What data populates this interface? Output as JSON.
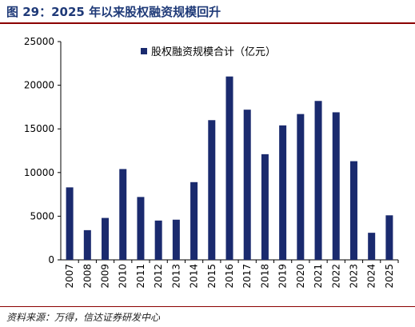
{
  "header": {
    "title": "图 29：2025 年以来股权融资规模回升"
  },
  "source": "资料来源：万得，信达证券研发中心",
  "colors": {
    "bar": "#1a2a6e",
    "accent": "#8b0000"
  },
  "chart_data": {
    "type": "bar",
    "categories": [
      "2007",
      "2008",
      "2009",
      "2010",
      "2011",
      "2012",
      "2013",
      "2014",
      "2015",
      "2016",
      "2017",
      "2018",
      "2019",
      "2020",
      "2021",
      "2022",
      "2023",
      "2024",
      "2025"
    ],
    "series": [
      {
        "name": "股权融资规模合计（亿元）",
        "values": [
          8300,
          3400,
          4800,
          10400,
          7200,
          4500,
          4600,
          8900,
          16000,
          21000,
          17200,
          12100,
          15400,
          16700,
          18200,
          16900,
          11300,
          3100,
          5100
        ]
      }
    ],
    "ylim": [
      0,
      25000
    ],
    "yticks": [
      0,
      5000,
      10000,
      15000,
      20000,
      25000
    ],
    "legend": "top",
    "grid": false
  }
}
